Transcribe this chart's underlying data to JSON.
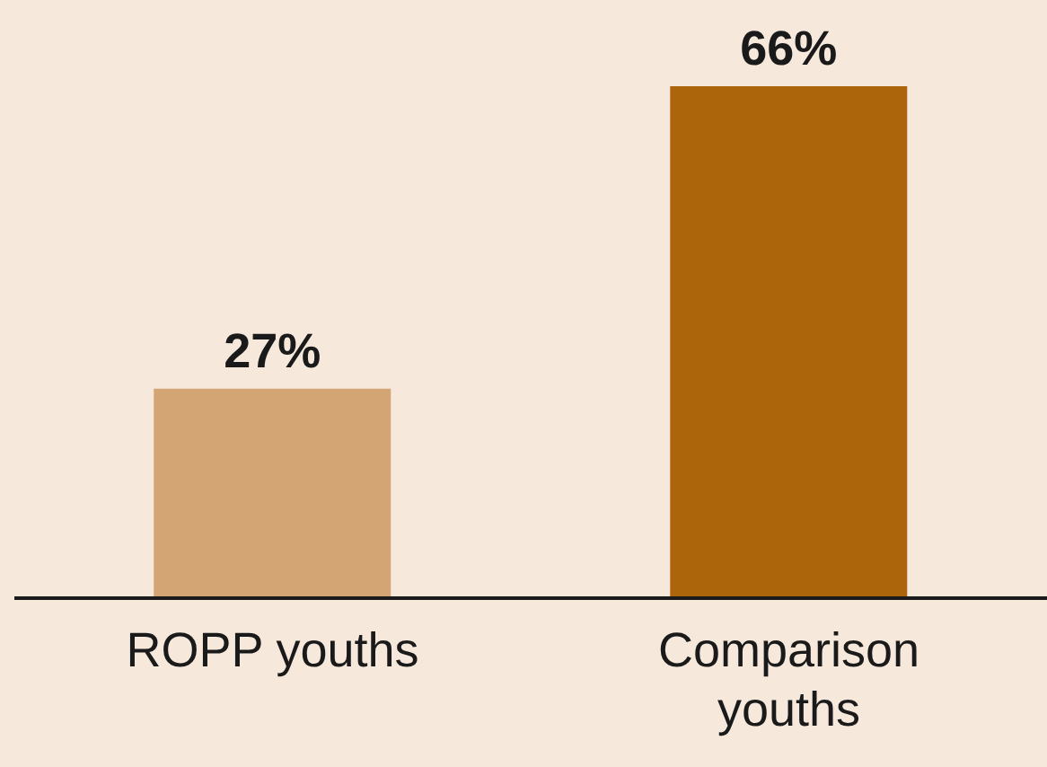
{
  "chart_data": {
    "type": "bar",
    "categories": [
      "ROPP youths",
      "Comparison youths"
    ],
    "values": [
      27,
      66
    ],
    "colors": [
      "#d4a574",
      "#ad650c"
    ],
    "value_labels": [
      "27%",
      "66%"
    ]
  }
}
